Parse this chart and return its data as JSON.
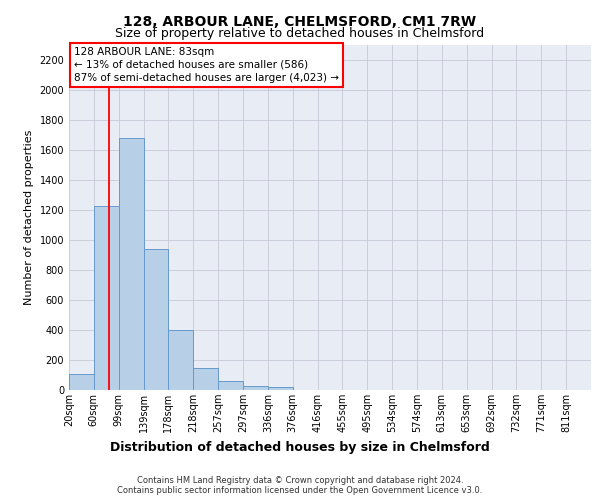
{
  "title1": "128, ARBOUR LANE, CHELMSFORD, CM1 7RW",
  "title2": "Size of property relative to detached houses in Chelmsford",
  "xlabel": "Distribution of detached houses by size in Chelmsford",
  "ylabel": "Number of detached properties",
  "bin_labels": [
    "20sqm",
    "60sqm",
    "99sqm",
    "139sqm",
    "178sqm",
    "218sqm",
    "257sqm",
    "297sqm",
    "336sqm",
    "376sqm",
    "416sqm",
    "455sqm",
    "495sqm",
    "534sqm",
    "574sqm",
    "613sqm",
    "653sqm",
    "692sqm",
    "732sqm",
    "771sqm",
    "811sqm"
  ],
  "bar_values": [
    105,
    1230,
    1680,
    940,
    400,
    150,
    60,
    30,
    20,
    0,
    0,
    0,
    0,
    0,
    0,
    0,
    0,
    0,
    0,
    0,
    0
  ],
  "bar_color": "#b8cfe8",
  "bar_edgecolor": "#6699cc",
  "bar_linewidth": 0.7,
  "annotation_box_text": "128 ARBOUR LANE: 83sqm\n← 13% of detached houses are smaller (586)\n87% of semi-detached houses are larger (4,023) →",
  "ylim": [
    0,
    2300
  ],
  "yticks": [
    0,
    200,
    400,
    600,
    800,
    1000,
    1200,
    1400,
    1600,
    1800,
    2000,
    2200
  ],
  "grid_color": "#c8c8d8",
  "background_color": "#e8edf5",
  "footer_text": "Contains HM Land Registry data © Crown copyright and database right 2024.\nContains public sector information licensed under the Open Government Licence v3.0.",
  "title1_fontsize": 10,
  "title2_fontsize": 9,
  "xlabel_fontsize": 9,
  "ylabel_fontsize": 8,
  "tick_fontsize": 7,
  "annotation_fontsize": 7.5,
  "footer_fontsize": 6
}
